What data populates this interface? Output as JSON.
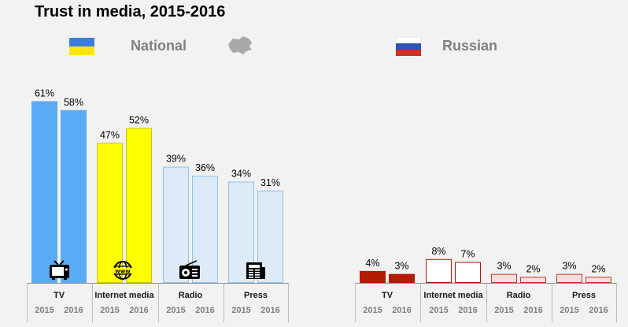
{
  "chart_data": {
    "type": "bar",
    "title": "Trust in media, 2015-2016",
    "groups": [
      {
        "name": "National",
        "categories": [
          {
            "name": "TV",
            "icon": "tv-icon",
            "fill": "#5aabf5",
            "stroke": "#5aabf5",
            "years": [
              "2015",
              "2016"
            ],
            "values": [
              61,
              58
            ],
            "labels": [
              "61%",
              "58%"
            ]
          },
          {
            "name": "Internet media",
            "icon": "www-globe-icon",
            "fill": "#ffff00",
            "stroke": "#c8c800",
            "years": [
              "2015",
              "2016"
            ],
            "values": [
              47,
              52
            ],
            "labels": [
              "47%",
              "52%"
            ]
          },
          {
            "name": "Radio",
            "icon": "radio-icon",
            "fill": "#dcebf7",
            "stroke": "#8fc1ea",
            "years": [
              "2015",
              "2016"
            ],
            "values": [
              39,
              36
            ],
            "labels": [
              "39%",
              "36%"
            ]
          },
          {
            "name": "Press",
            "icon": "newspaper-icon",
            "fill": "#dcebf7",
            "stroke": "#8fc1ea",
            "years": [
              "2015",
              "2016"
            ],
            "values": [
              34,
              31
            ],
            "labels": [
              "34%",
              "31%"
            ]
          }
        ]
      },
      {
        "name": "Russian",
        "categories": [
          {
            "name": "TV",
            "fill": "#b31a00",
            "stroke": "#b31a00",
            "years": [
              "2015",
              "2016"
            ],
            "values": [
              4,
              3
            ],
            "labels": [
              "4%",
              "3%"
            ]
          },
          {
            "name": "Internet media",
            "fill": "#ffffff",
            "stroke": "#b31a00",
            "years": [
              "2015",
              "2016"
            ],
            "values": [
              8,
              7
            ],
            "labels": [
              "8%",
              "7%"
            ]
          },
          {
            "name": "Radio",
            "fill": "#f7dede",
            "stroke": "#c0392b",
            "years": [
              "2015",
              "2016"
            ],
            "values": [
              3,
              2
            ],
            "labels": [
              "3%",
              "2%"
            ]
          },
          {
            "name": "Press",
            "fill": "#f7dede",
            "stroke": "#c0392b",
            "years": [
              "2015",
              "2016"
            ],
            "values": [
              3,
              2
            ],
            "labels": [
              "3%",
              "2%"
            ]
          }
        ]
      }
    ],
    "ylim": [
      0,
      100
    ],
    "grid": false,
    "colors": {
      "ukraine_flag": [
        "#005bbb",
        "#ffd500"
      ],
      "russia_flag": [
        "#ffffff",
        "#0039a6",
        "#d52b1e"
      ],
      "axis": "#7f7f7f"
    }
  }
}
